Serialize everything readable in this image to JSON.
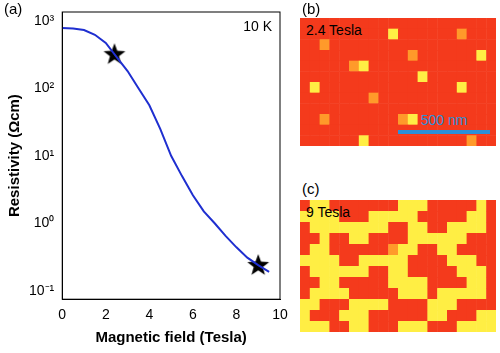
{
  "chart_data": {
    "type": "line",
    "panel": "(a)",
    "annotation": "10 K",
    "x_label": "Magnetic field (Tesla)",
    "y_label": "Resistivity (Ωcm)",
    "log": "y",
    "grid": false,
    "color": "#1f2fd0",
    "x": [
      0,
      0.5,
      1,
      1.5,
      2,
      2.5,
      3,
      3.5,
      4,
      4.5,
      5,
      5.5,
      6,
      6.5,
      7,
      7.5,
      8,
      8.5,
      9,
      9.5
    ],
    "values": [
      780,
      770,
      730,
      620,
      470,
      290,
      180,
      100,
      56,
      25,
      10,
      5,
      2.6,
      1.5,
      1.0,
      0.65,
      0.44,
      0.31,
      0.24,
      0.19
    ],
    "points": {
      "x": [
        2.4,
        9
      ],
      "values": [
        320,
        0.24
      ],
      "marker": "star",
      "color": "#000000"
    },
    "xlim": [
      0,
      10
    ],
    "xticks": [
      0,
      2,
      4,
      6,
      8,
      10
    ],
    "ylim": [
      0.075,
      1350
    ],
    "yticks": [
      {
        "value": 0.1,
        "label": "10⁻¹"
      },
      {
        "value": 1,
        "label": "10⁰"
      },
      {
        "value": 10,
        "label": "10¹"
      },
      {
        "value": 100,
        "label": "10²"
      },
      {
        "value": 1000,
        "label": "10³"
      }
    ]
  },
  "images": [
    {
      "panel": "(b)",
      "label": "2.4 Tesla",
      "scale_bar": "500 nm",
      "colors": [
        "#f43a1c",
        "#ff9a2a",
        "#ffee44"
      ],
      "cells": [
        [
          0,
          0,
          0,
          0,
          0,
          0,
          0,
          0,
          0,
          0,
          0,
          0,
          0,
          0,
          0,
          0,
          0,
          0,
          0,
          0
        ],
        [
          0,
          0,
          0,
          0,
          0,
          0,
          0,
          0,
          0,
          2,
          0,
          0,
          0,
          0,
          0,
          0,
          1,
          0,
          0,
          0
        ],
        [
          0,
          0,
          1,
          0,
          0,
          0,
          0,
          0,
          0,
          0,
          0,
          0,
          0,
          0,
          0,
          0,
          0,
          0,
          0,
          0
        ],
        [
          0,
          0,
          0,
          0,
          0,
          0,
          0,
          0,
          0,
          0,
          0,
          1,
          0,
          0,
          0,
          0,
          0,
          0,
          2,
          0
        ],
        [
          0,
          0,
          0,
          0,
          0,
          1,
          2,
          0,
          0,
          0,
          0,
          0,
          0,
          0,
          0,
          0,
          0,
          0,
          0,
          0
        ],
        [
          0,
          0,
          0,
          0,
          0,
          0,
          0,
          0,
          0,
          0,
          0,
          0,
          2,
          0,
          0,
          0,
          0,
          0,
          0,
          0
        ],
        [
          0,
          2,
          0,
          0,
          0,
          0,
          0,
          0,
          0,
          0,
          0,
          0,
          0,
          0,
          0,
          0,
          2,
          0,
          0,
          0
        ],
        [
          0,
          0,
          0,
          0,
          0,
          0,
          0,
          1,
          0,
          0,
          0,
          0,
          0,
          0,
          0,
          0,
          0,
          0,
          0,
          0
        ],
        [
          0,
          0,
          0,
          0,
          0,
          0,
          0,
          0,
          0,
          0,
          0,
          0,
          0,
          0,
          0,
          0,
          0,
          0,
          0,
          0
        ],
        [
          0,
          0,
          1,
          0,
          0,
          0,
          0,
          0,
          0,
          0,
          1,
          2,
          0,
          0,
          0,
          0,
          0,
          0,
          0,
          0
        ],
        [
          0,
          0,
          0,
          0,
          0,
          0,
          0,
          0,
          0,
          0,
          0,
          0,
          0,
          0,
          0,
          0,
          0,
          0,
          0,
          0
        ],
        [
          0,
          0,
          0,
          0,
          0,
          0,
          2,
          0,
          0,
          0,
          0,
          0,
          0,
          0,
          0,
          0,
          0,
          1,
          0,
          0
        ]
      ]
    },
    {
      "panel": "(c)",
      "label": "9 Tesla",
      "colors": [
        "#f43a1c",
        "#ff9a2a",
        "#ffee44"
      ],
      "cells": [
        [
          0,
          2,
          2,
          0,
          0,
          0,
          0,
          0,
          0,
          0,
          2,
          2,
          2,
          0,
          0,
          0,
          0,
          0,
          2,
          0
        ],
        [
          2,
          2,
          2,
          2,
          0,
          0,
          0,
          2,
          2,
          2,
          2,
          2,
          0,
          0,
          0,
          0,
          0,
          2,
          2,
          0
        ],
        [
          0,
          2,
          2,
          2,
          2,
          2,
          2,
          2,
          2,
          0,
          0,
          2,
          2,
          0,
          0,
          2,
          2,
          2,
          2,
          0
        ],
        [
          0,
          0,
          2,
          0,
          0,
          2,
          2,
          0,
          0,
          0,
          0,
          2,
          2,
          2,
          2,
          2,
          2,
          0,
          0,
          0
        ],
        [
          0,
          2,
          2,
          0,
          0,
          0,
          0,
          0,
          0,
          1,
          2,
          2,
          0,
          0,
          2,
          2,
          0,
          0,
          0,
          0
        ],
        [
          2,
          2,
          2,
          2,
          0,
          0,
          2,
          2,
          2,
          2,
          2,
          0,
          0,
          0,
          0,
          2,
          2,
          2,
          0,
          0
        ],
        [
          0,
          2,
          2,
          2,
          2,
          2,
          2,
          0,
          0,
          2,
          2,
          0,
          0,
          0,
          0,
          0,
          2,
          2,
          2,
          0
        ],
        [
          0,
          0,
          2,
          2,
          0,
          0,
          0,
          0,
          0,
          2,
          2,
          2,
          2,
          0,
          0,
          0,
          0,
          2,
          2,
          0
        ],
        [
          0,
          2,
          2,
          2,
          2,
          0,
          0,
          0,
          0,
          0,
          2,
          2,
          2,
          0,
          2,
          2,
          2,
          2,
          2,
          0
        ],
        [
          2,
          2,
          0,
          0,
          0,
          2,
          2,
          2,
          2,
          0,
          0,
          0,
          0,
          2,
          2,
          2,
          0,
          0,
          0,
          0
        ],
        [
          2,
          0,
          0,
          0,
          2,
          2,
          2,
          0,
          0,
          0,
          0,
          0,
          0,
          2,
          2,
          0,
          0,
          0,
          2,
          2
        ],
        [
          2,
          2,
          2,
          0,
          0,
          2,
          2,
          0,
          0,
          0,
          2,
          2,
          2,
          0,
          0,
          0,
          2,
          2,
          2,
          2
        ]
      ]
    }
  ]
}
